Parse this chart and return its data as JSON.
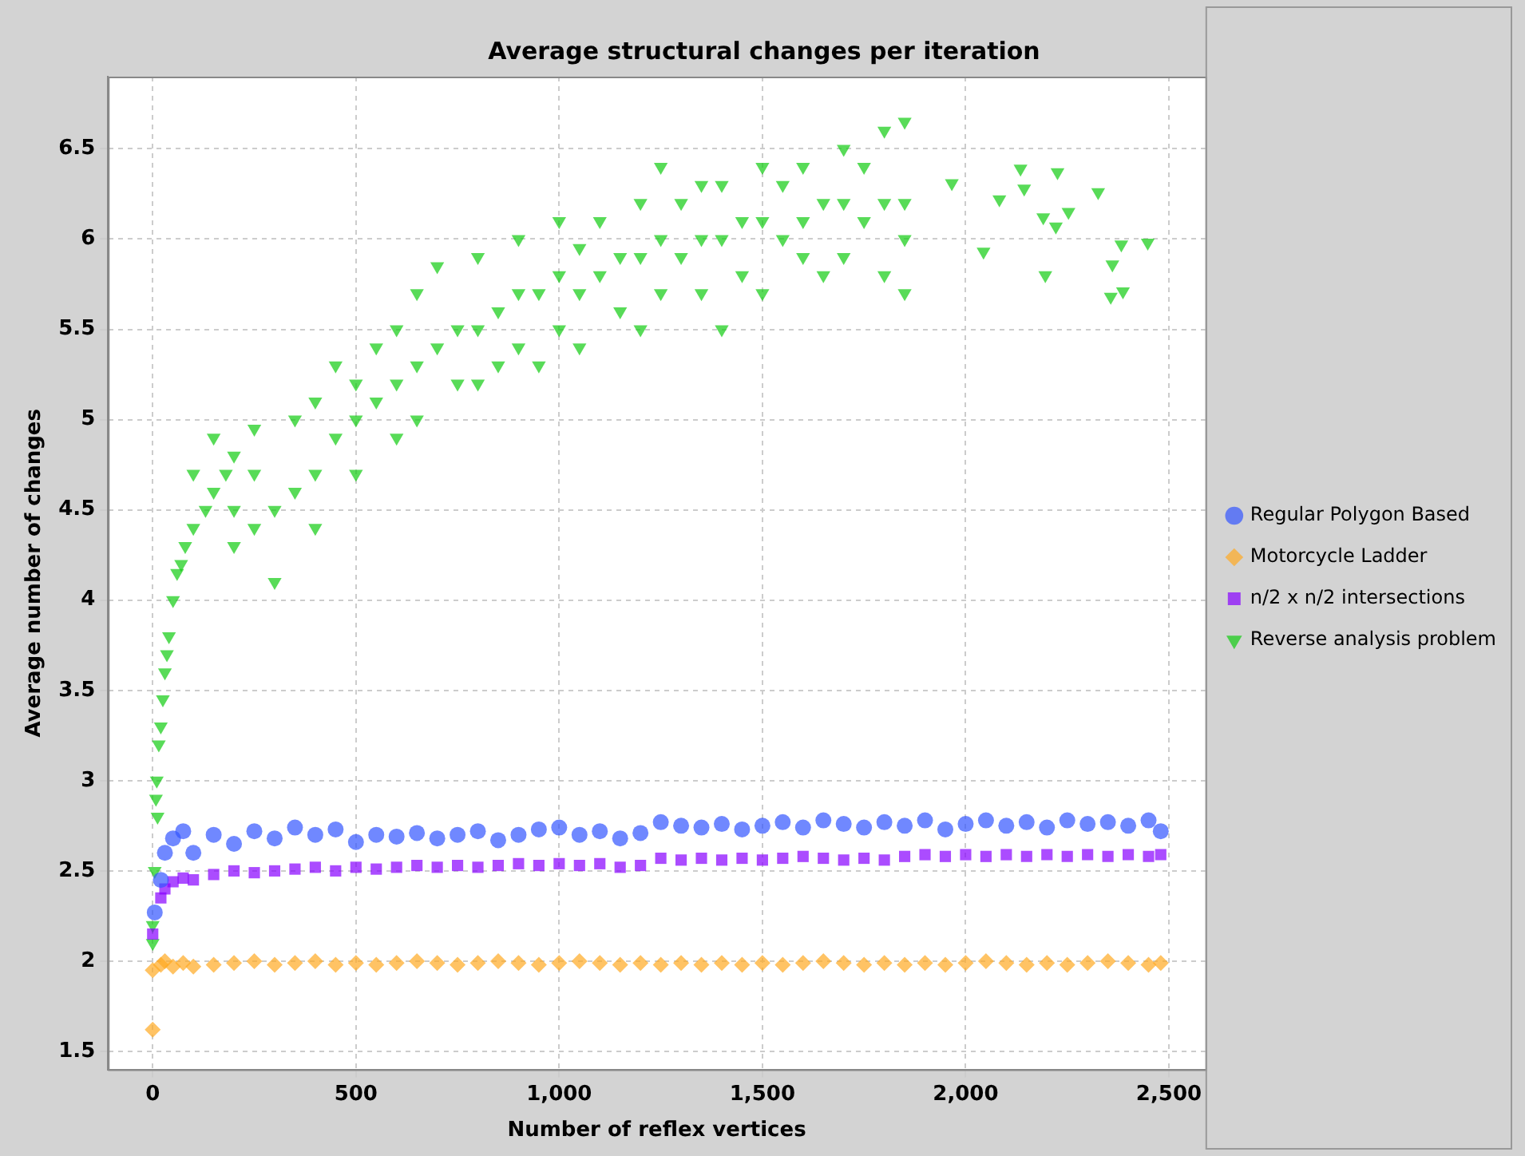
{
  "chart_data": {
    "type": "scatter",
    "title": "Average structural changes per iteration",
    "xlabel": "Number of reflex vertices",
    "ylabel": "Average number of changes",
    "xlim": [
      -110,
      2590
    ],
    "xticks": [
      0,
      500,
      {
        "value": 1000,
        "label": "1,000"
      },
      {
        "value": 1500,
        "label": "1,500"
      },
      {
        "value": 2000,
        "label": "2,000"
      },
      {
        "value": 2500,
        "label": "2,500"
      }
    ],
    "ylim": [
      1.4,
      6.9
    ],
    "yticks": [
      1.5,
      2,
      2.5,
      3,
      3.5,
      4,
      4.5,
      5,
      5.5,
      6,
      6.5
    ],
    "grid": true,
    "legend": "right",
    "series": [
      {
        "name": "Regular Polygon Based",
        "color": "#3355ff",
        "marker": "circle",
        "x": [
          5,
          20,
          30,
          50,
          75,
          100,
          150,
          200,
          250,
          300,
          350,
          400,
          450,
          500,
          550,
          600,
          650,
          700,
          750,
          800,
          850,
          900,
          950,
          1000,
          1050,
          1100,
          1150,
          1200,
          1250,
          1300,
          1350,
          1400,
          1450,
          1500,
          1550,
          1600,
          1650,
          1700,
          1750,
          1800,
          1850,
          1900,
          1950,
          2000,
          2050,
          2100,
          2150,
          2200,
          2250,
          2300,
          2350,
          2400,
          2450,
          2480
        ],
        "values": [
          2.27,
          2.45,
          2.6,
          2.68,
          2.72,
          2.6,
          2.7,
          2.65,
          2.72,
          2.68,
          2.74,
          2.7,
          2.73,
          2.66,
          2.7,
          2.69,
          2.71,
          2.68,
          2.7,
          2.72,
          2.67,
          2.7,
          2.73,
          2.74,
          2.7,
          2.72,
          2.68,
          2.71,
          2.77,
          2.75,
          2.74,
          2.76,
          2.73,
          2.75,
          2.77,
          2.74,
          2.78,
          2.76,
          2.74,
          2.77,
          2.75,
          2.78,
          2.73,
          2.76,
          2.78,
          2.75,
          2.77,
          2.74,
          2.78,
          2.76,
          2.77,
          2.75,
          2.78,
          2.72
        ]
      },
      {
        "name": "Motorcycle Ladder",
        "color": "#ffaa22",
        "marker": "diamond",
        "x": [
          0,
          0,
          20,
          30,
          50,
          75,
          100,
          150,
          200,
          250,
          300,
          350,
          400,
          450,
          500,
          550,
          600,
          650,
          700,
          750,
          800,
          850,
          900,
          950,
          1000,
          1050,
          1100,
          1150,
          1200,
          1250,
          1300,
          1350,
          1400,
          1450,
          1500,
          1550,
          1600,
          1650,
          1700,
          1750,
          1800,
          1850,
          1900,
          1950,
          2000,
          2050,
          2100,
          2150,
          2200,
          2250,
          2300,
          2350,
          2400,
          2450,
          2480
        ],
        "values": [
          1.62,
          1.95,
          1.98,
          2.0,
          1.97,
          1.99,
          1.97,
          1.98,
          1.99,
          2.0,
          1.98,
          1.99,
          2.0,
          1.98,
          1.99,
          1.98,
          1.99,
          2.0,
          1.99,
          1.98,
          1.99,
          2.0,
          1.99,
          1.98,
          1.99,
          2.0,
          1.99,
          1.98,
          1.99,
          1.98,
          1.99,
          1.98,
          1.99,
          1.98,
          1.99,
          1.98,
          1.99,
          2.0,
          1.99,
          1.98,
          1.99,
          1.98,
          1.99,
          1.98,
          1.99,
          2.0,
          1.99,
          1.98,
          1.99,
          1.98,
          1.99,
          2.0,
          1.99,
          1.98,
          1.99
        ]
      },
      {
        "name": "n/2 x n/2 intersections",
        "color": "#8800ff",
        "marker": "square",
        "x": [
          0,
          20,
          30,
          50,
          75,
          100,
          150,
          200,
          250,
          300,
          350,
          400,
          450,
          500,
          550,
          600,
          650,
          700,
          750,
          800,
          850,
          900,
          950,
          1000,
          1050,
          1100,
          1150,
          1200,
          1250,
          1300,
          1350,
          1400,
          1450,
          1500,
          1550,
          1600,
          1650,
          1700,
          1750,
          1800,
          1850,
          1900,
          1950,
          2000,
          2050,
          2100,
          2150,
          2200,
          2250,
          2300,
          2350,
          2400,
          2450,
          2480
        ],
        "values": [
          2.15,
          2.35,
          2.4,
          2.44,
          2.46,
          2.45,
          2.48,
          2.5,
          2.49,
          2.5,
          2.51,
          2.52,
          2.5,
          2.52,
          2.51,
          2.52,
          2.53,
          2.52,
          2.53,
          2.52,
          2.53,
          2.54,
          2.53,
          2.54,
          2.53,
          2.54,
          2.52,
          2.53,
          2.57,
          2.56,
          2.57,
          2.56,
          2.57,
          2.56,
          2.57,
          2.58,
          2.57,
          2.56,
          2.57,
          2.56,
          2.58,
          2.59,
          2.58,
          2.59,
          2.58,
          2.59,
          2.58,
          2.59,
          2.58,
          2.59,
          2.58,
          2.59,
          2.58,
          2.59
        ]
      },
      {
        "name": "Reverse analysis problem",
        "color": "#11cc11",
        "marker": "triangle",
        "x": [
          0,
          0,
          5,
          8,
          10,
          12,
          15,
          20,
          25,
          30,
          35,
          40,
          50,
          60,
          70,
          80,
          100,
          100,
          130,
          150,
          150,
          180,
          200,
          200,
          200,
          250,
          250,
          250,
          300,
          300,
          350,
          350,
          400,
          400,
          400,
          450,
          450,
          500,
          500,
          500,
          550,
          550,
          600,
          600,
          600,
          650,
          650,
          650,
          700,
          700,
          750,
          750,
          800,
          800,
          800,
          850,
          850,
          900,
          900,
          900,
          950,
          950,
          1000,
          1000,
          1000,
          1050,
          1050,
          1050,
          1100,
          1100,
          1150,
          1150,
          1200,
          1200,
          1200,
          1250,
          1250,
          1250,
          1300,
          1300,
          1350,
          1350,
          1350,
          1400,
          1400,
          1400,
          1450,
          1450,
          1500,
          1500,
          1500,
          1550,
          1550,
          1600,
          1600,
          1600,
          1650,
          1650,
          1700,
          1700,
          1700,
          1750,
          1750,
          1800,
          1800,
          1800,
          1850,
          1850,
          1850,
          1850,
          1966,
          2044,
          2083,
          2135,
          2144,
          2191,
          2196,
          2222,
          2226,
          2253,
          2326,
          2357,
          2361,
          2383,
          2387,
          2448
        ],
        "values": [
          2.1,
          2.2,
          2.5,
          2.9,
          3.0,
          2.8,
          3.2,
          3.3,
          3.45,
          3.6,
          3.7,
          3.8,
          4.0,
          4.15,
          4.2,
          4.3,
          4.4,
          4.7,
          4.5,
          4.6,
          4.9,
          4.7,
          4.5,
          4.8,
          4.3,
          4.4,
          4.7,
          4.95,
          4.1,
          4.5,
          4.6,
          5.0,
          4.7,
          5.1,
          4.4,
          4.9,
          5.3,
          5.0,
          4.7,
          5.2,
          5.1,
          5.4,
          5.2,
          4.9,
          5.5,
          5.3,
          5.7,
          5.0,
          5.4,
          5.85,
          5.5,
          5.2,
          5.5,
          5.9,
          5.2,
          5.6,
          5.3,
          5.7,
          5.4,
          6.0,
          5.7,
          5.3,
          5.8,
          5.5,
          6.1,
          5.7,
          5.95,
          5.4,
          5.8,
          6.1,
          5.9,
          5.6,
          5.9,
          6.2,
          5.5,
          6.0,
          5.7,
          6.4,
          5.9,
          6.2,
          6.0,
          5.7,
          6.3,
          6.0,
          6.3,
          5.5,
          6.1,
          5.8,
          6.1,
          6.4,
          5.7,
          6.0,
          6.3,
          6.1,
          5.9,
          6.4,
          6.2,
          5.8,
          6.2,
          6.5,
          5.9,
          6.1,
          6.4,
          6.2,
          6.6,
          5.8,
          6.0,
          6.2,
          5.7,
          6.65,
          6.31,
          5.93,
          6.22,
          6.39,
          6.28,
          6.12,
          5.8,
          6.07,
          6.37,
          6.15,
          6.26,
          5.68,
          5.86,
          5.97,
          5.71,
          5.98
        ]
      }
    ]
  }
}
